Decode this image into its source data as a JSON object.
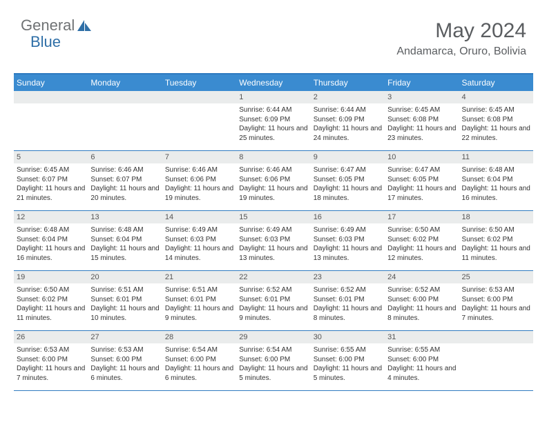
{
  "logo": {
    "text_general": "General",
    "text_blue": "Blue",
    "icon_color": "#2f6fa7"
  },
  "header": {
    "title": "May 2024",
    "location": "Andamarca, Oruro, Bolivia"
  },
  "colors": {
    "header_bar": "#3a8bd0",
    "border": "#2e7ac0",
    "daynum_bg": "#eaecec",
    "text_dark": "#333333",
    "text_muted": "#5a5d60"
  },
  "daysOfWeek": [
    "Sunday",
    "Monday",
    "Tuesday",
    "Wednesday",
    "Thursday",
    "Friday",
    "Saturday"
  ],
  "weeks": [
    [
      null,
      null,
      null,
      {
        "num": "1",
        "sunrise": "6:44 AM",
        "sunset": "6:09 PM",
        "daylight": "11 hours and 25 minutes."
      },
      {
        "num": "2",
        "sunrise": "6:44 AM",
        "sunset": "6:09 PM",
        "daylight": "11 hours and 24 minutes."
      },
      {
        "num": "3",
        "sunrise": "6:45 AM",
        "sunset": "6:08 PM",
        "daylight": "11 hours and 23 minutes."
      },
      {
        "num": "4",
        "sunrise": "6:45 AM",
        "sunset": "6:08 PM",
        "daylight": "11 hours and 22 minutes."
      }
    ],
    [
      {
        "num": "5",
        "sunrise": "6:45 AM",
        "sunset": "6:07 PM",
        "daylight": "11 hours and 21 minutes."
      },
      {
        "num": "6",
        "sunrise": "6:46 AM",
        "sunset": "6:07 PM",
        "daylight": "11 hours and 20 minutes."
      },
      {
        "num": "7",
        "sunrise": "6:46 AM",
        "sunset": "6:06 PM",
        "daylight": "11 hours and 19 minutes."
      },
      {
        "num": "8",
        "sunrise": "6:46 AM",
        "sunset": "6:06 PM",
        "daylight": "11 hours and 19 minutes."
      },
      {
        "num": "9",
        "sunrise": "6:47 AM",
        "sunset": "6:05 PM",
        "daylight": "11 hours and 18 minutes."
      },
      {
        "num": "10",
        "sunrise": "6:47 AM",
        "sunset": "6:05 PM",
        "daylight": "11 hours and 17 minutes."
      },
      {
        "num": "11",
        "sunrise": "6:48 AM",
        "sunset": "6:04 PM",
        "daylight": "11 hours and 16 minutes."
      }
    ],
    [
      {
        "num": "12",
        "sunrise": "6:48 AM",
        "sunset": "6:04 PM",
        "daylight": "11 hours and 16 minutes."
      },
      {
        "num": "13",
        "sunrise": "6:48 AM",
        "sunset": "6:04 PM",
        "daylight": "11 hours and 15 minutes."
      },
      {
        "num": "14",
        "sunrise": "6:49 AM",
        "sunset": "6:03 PM",
        "daylight": "11 hours and 14 minutes."
      },
      {
        "num": "15",
        "sunrise": "6:49 AM",
        "sunset": "6:03 PM",
        "daylight": "11 hours and 13 minutes."
      },
      {
        "num": "16",
        "sunrise": "6:49 AM",
        "sunset": "6:03 PM",
        "daylight": "11 hours and 13 minutes."
      },
      {
        "num": "17",
        "sunrise": "6:50 AM",
        "sunset": "6:02 PM",
        "daylight": "11 hours and 12 minutes."
      },
      {
        "num": "18",
        "sunrise": "6:50 AM",
        "sunset": "6:02 PM",
        "daylight": "11 hours and 11 minutes."
      }
    ],
    [
      {
        "num": "19",
        "sunrise": "6:50 AM",
        "sunset": "6:02 PM",
        "daylight": "11 hours and 11 minutes."
      },
      {
        "num": "20",
        "sunrise": "6:51 AM",
        "sunset": "6:01 PM",
        "daylight": "11 hours and 10 minutes."
      },
      {
        "num": "21",
        "sunrise": "6:51 AM",
        "sunset": "6:01 PM",
        "daylight": "11 hours and 9 minutes."
      },
      {
        "num": "22",
        "sunrise": "6:52 AM",
        "sunset": "6:01 PM",
        "daylight": "11 hours and 9 minutes."
      },
      {
        "num": "23",
        "sunrise": "6:52 AM",
        "sunset": "6:01 PM",
        "daylight": "11 hours and 8 minutes."
      },
      {
        "num": "24",
        "sunrise": "6:52 AM",
        "sunset": "6:00 PM",
        "daylight": "11 hours and 8 minutes."
      },
      {
        "num": "25",
        "sunrise": "6:53 AM",
        "sunset": "6:00 PM",
        "daylight": "11 hours and 7 minutes."
      }
    ],
    [
      {
        "num": "26",
        "sunrise": "6:53 AM",
        "sunset": "6:00 PM",
        "daylight": "11 hours and 7 minutes."
      },
      {
        "num": "27",
        "sunrise": "6:53 AM",
        "sunset": "6:00 PM",
        "daylight": "11 hours and 6 minutes."
      },
      {
        "num": "28",
        "sunrise": "6:54 AM",
        "sunset": "6:00 PM",
        "daylight": "11 hours and 6 minutes."
      },
      {
        "num": "29",
        "sunrise": "6:54 AM",
        "sunset": "6:00 PM",
        "daylight": "11 hours and 5 minutes."
      },
      {
        "num": "30",
        "sunrise": "6:55 AM",
        "sunset": "6:00 PM",
        "daylight": "11 hours and 5 minutes."
      },
      {
        "num": "31",
        "sunrise": "6:55 AM",
        "sunset": "6:00 PM",
        "daylight": "11 hours and 4 minutes."
      },
      null
    ]
  ],
  "labels": {
    "sunrise_prefix": "Sunrise: ",
    "sunset_prefix": "Sunset: ",
    "daylight_prefix": "Daylight: "
  }
}
